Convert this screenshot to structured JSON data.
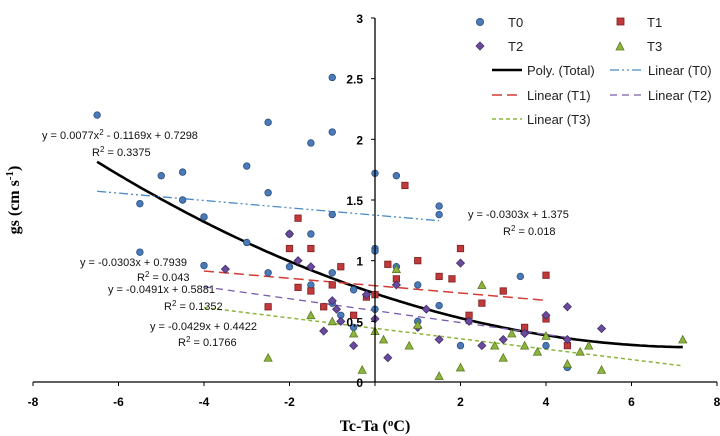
{
  "chart_data": {
    "type": "scatter",
    "xlabel": "Tc-Ta (oC)",
    "ylabel": "gs (cm s-1)",
    "xlim": [
      -8,
      8
    ],
    "ylim": [
      0,
      3
    ],
    "x_ticks": [
      "-8",
      "-6",
      "-4",
      "-2",
      "0",
      "2",
      "4",
      "6",
      "8"
    ],
    "y_ticks": [
      "0",
      "0.5",
      "1",
      "1.5",
      "2",
      "2.5",
      "3"
    ],
    "grid": false,
    "legend_position": "top-right",
    "series": [
      {
        "name": "T0",
        "marker": "circle",
        "color": "#4a7ab8",
        "points": [
          [
            -6.5,
            2.2
          ],
          [
            -5.5,
            1.47
          ],
          [
            -5.5,
            1.07
          ],
          [
            -5,
            1.7
          ],
          [
            -4.5,
            1.73
          ],
          [
            -4.5,
            1.5
          ],
          [
            -4,
            1.36
          ],
          [
            -4,
            0.96
          ],
          [
            -3,
            1.78
          ],
          [
            -3,
            1.15
          ],
          [
            -2.5,
            2.14
          ],
          [
            -2.5,
            1.56
          ],
          [
            -2.5,
            0.9
          ],
          [
            -2,
            1.22
          ],
          [
            -2,
            0.95
          ],
          [
            -1.5,
            1.97
          ],
          [
            -1.5,
            1.22
          ],
          [
            -1.5,
            0.8
          ],
          [
            -1,
            2.51
          ],
          [
            -1,
            2.06
          ],
          [
            -1,
            1.38
          ],
          [
            -1,
            0.9
          ],
          [
            -1,
            0.65
          ],
          [
            -0.8,
            0.55
          ],
          [
            -0.5,
            0.76
          ],
          [
            -0.5,
            0.45
          ],
          [
            0,
            1.72
          ],
          [
            0,
            1.1
          ],
          [
            0,
            1.08
          ],
          [
            0,
            0.6
          ],
          [
            0.5,
            1.7
          ],
          [
            0.5,
            0.95
          ],
          [
            1,
            0.8
          ],
          [
            1,
            0.5
          ],
          [
            1.5,
            1.45
          ],
          [
            1.5,
            1.38
          ],
          [
            1.5,
            0.63
          ],
          [
            2,
            0.3
          ],
          [
            3.4,
            0.87
          ],
          [
            4,
            0.3
          ],
          [
            4.5,
            0.12
          ]
        ]
      },
      {
        "name": "T1",
        "marker": "square",
        "color": "#c0393b",
        "points": [
          [
            -2.5,
            0.62
          ],
          [
            -2,
            1.1
          ],
          [
            -1.8,
            1.35
          ],
          [
            -1.8,
            0.78
          ],
          [
            -1.5,
            1.1
          ],
          [
            -1.5,
            0.75
          ],
          [
            -1.2,
            0.62
          ],
          [
            -1,
            0.8
          ],
          [
            -0.8,
            0.95
          ],
          [
            -0.5,
            0.55
          ],
          [
            -0.2,
            0.7
          ],
          [
            0,
            0.72
          ],
          [
            0.3,
            0.97
          ],
          [
            0.5,
            0.85
          ],
          [
            0.7,
            1.62
          ],
          [
            1,
            1.0
          ],
          [
            1.5,
            0.87
          ],
          [
            1.8,
            0.85
          ],
          [
            2,
            1.1
          ],
          [
            2.2,
            0.55
          ],
          [
            2.5,
            0.65
          ],
          [
            3,
            0.75
          ],
          [
            3.5,
            0.45
          ],
          [
            4,
            0.88
          ],
          [
            4,
            0.52
          ],
          [
            4.5,
            0.3
          ]
        ]
      },
      {
        "name": "T2",
        "marker": "diamond",
        "color": "#6a4a9c",
        "points": [
          [
            -3.5,
            0.93
          ],
          [
            -2,
            1.22
          ],
          [
            -1.8,
            1.0
          ],
          [
            -1.5,
            0.95
          ],
          [
            -1.2,
            0.42
          ],
          [
            -1,
            0.67
          ],
          [
            -0.9,
            0.6
          ],
          [
            -0.8,
            0.5
          ],
          [
            -0.5,
            0.3
          ],
          [
            -0.2,
            0.72
          ],
          [
            0,
            0.52
          ],
          [
            0.3,
            0.2
          ],
          [
            0.5,
            0.8
          ],
          [
            1,
            0.45
          ],
          [
            1.2,
            0.6
          ],
          [
            1.5,
            0.35
          ],
          [
            2,
            0.98
          ],
          [
            2.2,
            0.5
          ],
          [
            2.5,
            0.3
          ],
          [
            3,
            0.35
          ],
          [
            3.5,
            0.4
          ],
          [
            4,
            0.55
          ],
          [
            4.5,
            0.62
          ],
          [
            4.5,
            0.35
          ],
          [
            5.3,
            0.44
          ]
        ]
      },
      {
        "name": "T3",
        "marker": "triangle",
        "color": "#8db53c",
        "points": [
          [
            -2.5,
            0.2
          ],
          [
            -1.5,
            0.55
          ],
          [
            -1,
            0.5
          ],
          [
            -0.5,
            0.4
          ],
          [
            -0.3,
            0.1
          ],
          [
            0,
            0.42
          ],
          [
            0.2,
            0.35
          ],
          [
            0.5,
            0.93
          ],
          [
            0.8,
            0.3
          ],
          [
            1,
            0.47
          ],
          [
            1.5,
            0.05
          ],
          [
            2,
            0.12
          ],
          [
            2.5,
            0.8
          ],
          [
            2.8,
            0.3
          ],
          [
            3,
            0.2
          ],
          [
            3.2,
            0.4
          ],
          [
            3.5,
            0.3
          ],
          [
            3.8,
            0.25
          ],
          [
            4,
            0.38
          ],
          [
            4.5,
            0.15
          ],
          [
            4.8,
            0.25
          ],
          [
            5,
            0.3
          ],
          [
            5.3,
            0.1
          ],
          [
            7.2,
            0.35
          ]
        ]
      }
    ],
    "fits": [
      {
        "name": "Poly. (Total)",
        "kind": "poly2",
        "coef": [
          0.0077,
          -0.1169,
          0.7298
        ],
        "range": [
          -6.5,
          7.2
        ],
        "color": "#000000",
        "dash": "",
        "width": 2.6,
        "equation": "y = 0.0077x2 - 0.1169x + 0.7298",
        "r2": "R2 = 0.3375"
      },
      {
        "name": "Linear (T0)",
        "kind": "linear",
        "coef": [
          -0.0303,
          1.375
        ],
        "range": [
          -6.5,
          1.5
        ],
        "color": "#4a8ac6",
        "dash": "9,3,2,3,2,3",
        "width": 1.3,
        "equation": "y = -0.0303x + 1.375",
        "r2": "R2 = 0.018"
      },
      {
        "name": "Linear (T1)",
        "kind": "linear",
        "coef": [
          -0.0303,
          0.7939
        ],
        "range": [
          -4,
          4
        ],
        "color": "#d43b34",
        "dash": "10,5",
        "width": 1.5,
        "equation": "y = -0.0303x + 0.7939",
        "r2": "R2 = 0.043"
      },
      {
        "name": "Linear (T2)",
        "kind": "linear",
        "coef": [
          -0.0491,
          0.5881
        ],
        "range": [
          -4,
          4.5
        ],
        "color": "#7a5cab",
        "dash": "7,5",
        "width": 1.3,
        "equation": "y = -0.0491x + 0.5881",
        "r2": "R2 = 0.1352"
      },
      {
        "name": "Linear (T3)",
        "kind": "linear",
        "coef": [
          -0.0429,
          0.4422
        ],
        "range": [
          -4,
          7.2
        ],
        "color": "#8db53c",
        "dash": "4,3",
        "width": 1.5,
        "equation": "y = -0.0429x + 0.4422",
        "r2": "R2 = 0.1766"
      }
    ]
  }
}
